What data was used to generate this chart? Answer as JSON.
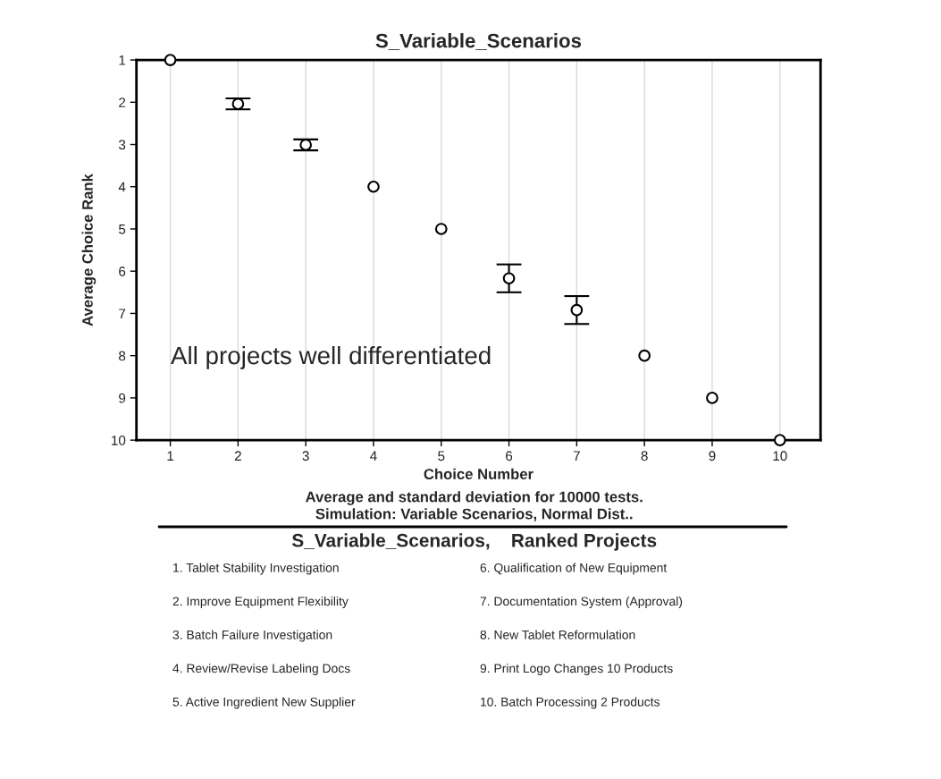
{
  "chart_data": {
    "type": "scatter",
    "title": "S_Variable_Scenarios",
    "xlabel": "Choice Number",
    "ylabel": "Average Choice Rank",
    "x": [
      1,
      2,
      3,
      4,
      5,
      6,
      7,
      8,
      9,
      10
    ],
    "values": [
      1.0,
      2.04,
      3.01,
      4.0,
      5.0,
      6.17,
      6.92,
      8.0,
      9.0,
      10.0
    ],
    "errors": [
      null,
      0.13,
      0.13,
      null,
      null,
      0.33,
      0.33,
      null,
      null,
      null
    ],
    "color": "#ffffff",
    "marker": "circle",
    "grid": "x",
    "legend": false,
    "xlim": [
      0.5,
      10.6
    ],
    "xticks": [
      1,
      2,
      3,
      4,
      5,
      6,
      7,
      8,
      9,
      10
    ],
    "ylim": [
      10,
      1
    ],
    "yticks": [
      1,
      2,
      3,
      4,
      5,
      6,
      7,
      8,
      9,
      10
    ],
    "annotations": [
      "All projects well differentiated",
      "Average and standard deviation for 10000 tests.",
      "Simulation: Variable Scenarios, Normal Dist..",
      "S_Variable_Scenarios,    Ranked Projects",
      "1. Tablet Stability Investigation",
      "2. Improve Equipment Flexibility",
      "3. Batch Failure Investigation",
      "4. Review/Revise Labeling Docs",
      "5. Active Ingredient New Supplier",
      "6. Qualification of New Equipment",
      "7. Documentation System (Approval)",
      "8. New Tablet Reformulation",
      "9. Print Logo Changes 10 Products",
      "10. Batch Processing 2 Products"
    ]
  }
}
